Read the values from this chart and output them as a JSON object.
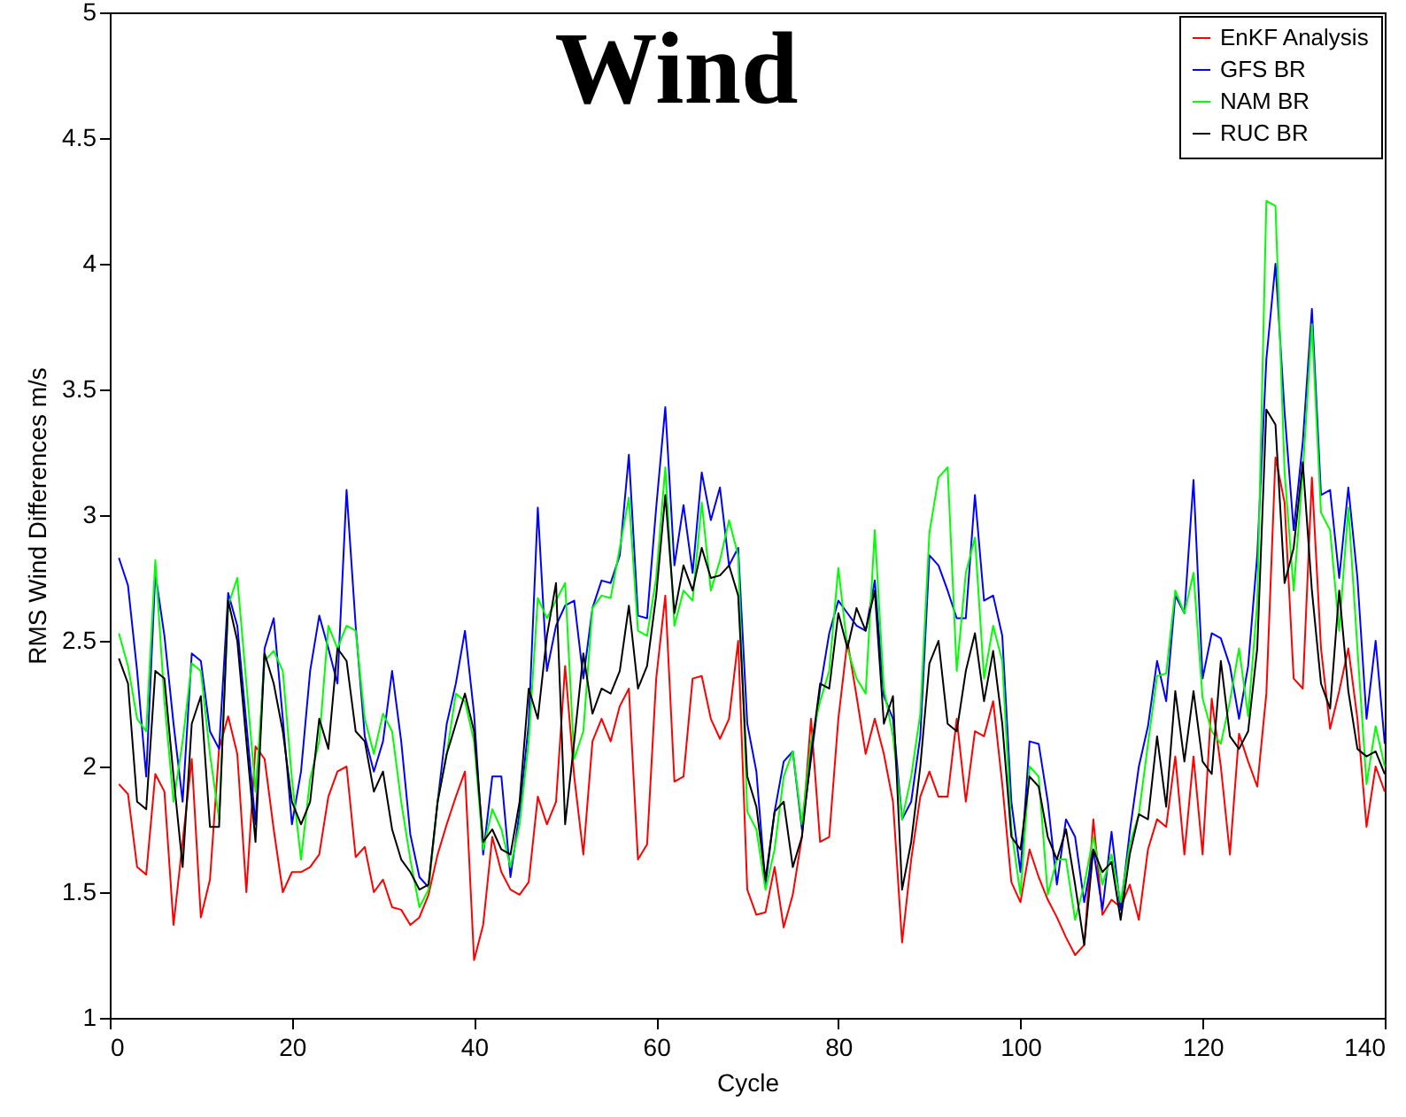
{
  "chart_data": {
    "type": "line",
    "title": "Wind",
    "xlabel": "Cycle",
    "ylabel": "RMS Wind Differences m/s",
    "x": [
      1,
      2,
      3,
      4,
      5,
      6,
      7,
      8,
      9,
      10,
      11,
      12,
      13,
      14,
      15,
      16,
      17,
      18,
      19,
      20,
      21,
      22,
      23,
      24,
      25,
      26,
      27,
      28,
      29,
      30,
      31,
      32,
      33,
      34,
      35,
      36,
      37,
      38,
      39,
      40,
      41,
      42,
      43,
      44,
      45,
      46,
      47,
      48,
      49,
      50,
      51,
      52,
      53,
      54,
      55,
      56,
      57,
      58,
      59,
      60,
      61,
      62,
      63,
      64,
      65,
      66,
      67,
      68,
      69,
      70,
      71,
      72,
      73,
      74,
      75,
      76,
      77,
      78,
      79,
      80,
      81,
      82,
      83,
      84,
      85,
      86,
      87,
      88,
      89,
      90,
      91,
      92,
      93,
      94,
      95,
      96,
      97,
      98,
      99,
      100,
      101,
      102,
      103,
      104,
      105,
      106,
      107,
      108,
      109,
      110,
      111,
      112,
      113,
      114,
      115,
      116,
      117,
      118,
      119,
      120,
      121,
      122,
      123,
      124,
      125,
      126,
      127,
      128,
      129,
      130,
      131,
      132,
      133,
      134,
      135,
      136,
      137,
      138,
      139,
      140
    ],
    "series": [
      {
        "name": "EnKF Analysis",
        "color": "#ff0000",
        "values": [
          1.93,
          1.89,
          1.6,
          1.57,
          1.97,
          1.9,
          1.37,
          1.7,
          2.03,
          1.4,
          1.55,
          2.07,
          2.2,
          2.05,
          1.5,
          2.08,
          2.03,
          1.75,
          1.5,
          1.58,
          1.58,
          1.6,
          1.65,
          1.88,
          1.98,
          2.0,
          1.64,
          1.68,
          1.5,
          1.55,
          1.44,
          1.43,
          1.37,
          1.4,
          1.49,
          1.65,
          1.77,
          1.88,
          1.98,
          1.23,
          1.37,
          1.72,
          1.58,
          1.51,
          1.49,
          1.54,
          1.88,
          1.77,
          1.86,
          2.4,
          1.96,
          1.65,
          2.1,
          2.19,
          2.1,
          2.24,
          2.31,
          1.63,
          1.69,
          2.35,
          2.68,
          1.94,
          1.96,
          2.35,
          2.36,
          2.19,
          2.11,
          2.19,
          2.5,
          1.51,
          1.41,
          1.42,
          1.6,
          1.36,
          1.49,
          1.72,
          2.19,
          1.7,
          1.72,
          2.19,
          2.5,
          2.28,
          2.05,
          2.19,
          2.05,
          1.86,
          1.3,
          1.63,
          1.88,
          1.98,
          1.88,
          1.88,
          2.19,
          1.86,
          2.14,
          2.12,
          2.26,
          1.93,
          1.54,
          1.46,
          1.67,
          1.56,
          1.47,
          1.4,
          1.32,
          1.25,
          1.29,
          1.79,
          1.41,
          1.47,
          1.44,
          1.53,
          1.39,
          1.67,
          1.79,
          1.76,
          2.04,
          1.65,
          2.04,
          1.65,
          2.27,
          2.0,
          1.65,
          2.13,
          2.02,
          1.92,
          2.29,
          3.23,
          3.05,
          2.35,
          2.31,
          3.15,
          2.47,
          2.15,
          2.3,
          2.47,
          2.19,
          1.76,
          2.0,
          1.9
        ]
      },
      {
        "name": "GFS BR",
        "color": "#0000ff",
        "values": [
          2.83,
          2.72,
          2.38,
          1.96,
          2.77,
          2.52,
          2.17,
          1.86,
          2.45,
          2.42,
          2.14,
          2.07,
          2.69,
          2.56,
          2.17,
          1.77,
          2.47,
          2.59,
          2.19,
          1.77,
          1.98,
          2.38,
          2.6,
          2.47,
          2.33,
          3.1,
          2.56,
          2.12,
          1.98,
          2.1,
          2.38,
          2.1,
          1.73,
          1.56,
          1.52,
          1.86,
          2.17,
          2.33,
          2.54,
          2.21,
          1.65,
          1.96,
          1.96,
          1.56,
          1.82,
          2.17,
          3.03,
          2.38,
          2.56,
          2.64,
          2.66,
          2.35,
          2.63,
          2.74,
          2.73,
          2.84,
          3.24,
          2.6,
          2.59,
          3.03,
          3.43,
          2.8,
          3.04,
          2.77,
          3.17,
          2.98,
          3.11,
          2.8,
          2.87,
          2.17,
          1.98,
          1.53,
          1.82,
          2.02,
          2.06,
          1.75,
          2.03,
          2.31,
          2.53,
          2.66,
          2.61,
          2.56,
          2.54,
          2.74,
          2.28,
          2.19,
          1.79,
          1.86,
          2.12,
          2.84,
          2.8,
          2.7,
          2.59,
          2.59,
          3.08,
          2.66,
          2.68,
          2.52,
          1.86,
          1.58,
          2.1,
          2.09,
          1.86,
          1.53,
          1.79,
          1.72,
          1.46,
          1.67,
          1.43,
          1.74,
          1.43,
          1.74,
          2.0,
          2.16,
          2.42,
          2.26,
          2.68,
          2.61,
          3.14,
          2.35,
          2.53,
          2.51,
          2.4,
          2.19,
          2.4,
          2.84,
          3.62,
          4.0,
          3.41,
          2.94,
          3.29,
          3.82,
          3.08,
          3.1,
          2.75,
          3.11,
          2.75,
          2.19,
          2.5,
          2.09
        ]
      },
      {
        "name": "NAM BR",
        "color": "#00ff00",
        "values": [
          2.53,
          2.4,
          2.19,
          2.14,
          2.82,
          2.26,
          1.86,
          2.1,
          2.41,
          2.38,
          2.05,
          1.79,
          2.64,
          2.75,
          2.33,
          1.9,
          2.42,
          2.46,
          2.38,
          1.95,
          1.63,
          1.95,
          2.1,
          2.56,
          2.47,
          2.56,
          2.54,
          2.19,
          2.05,
          2.21,
          2.14,
          1.86,
          1.63,
          1.44,
          1.51,
          1.86,
          2.05,
          2.29,
          2.26,
          2.1,
          1.67,
          1.83,
          1.75,
          1.6,
          1.77,
          2.1,
          2.67,
          2.59,
          2.66,
          2.73,
          2.03,
          2.14,
          2.63,
          2.68,
          2.67,
          2.87,
          3.07,
          2.54,
          2.52,
          2.75,
          3.19,
          2.56,
          2.7,
          2.66,
          3.05,
          2.7,
          2.82,
          2.98,
          2.84,
          1.82,
          1.75,
          1.51,
          1.67,
          1.96,
          2.06,
          1.77,
          2.1,
          2.26,
          2.38,
          2.79,
          2.47,
          2.35,
          2.29,
          2.94,
          2.31,
          2.12,
          1.79,
          1.96,
          2.21,
          2.93,
          3.15,
          3.19,
          2.38,
          2.77,
          2.91,
          2.35,
          2.56,
          2.42,
          1.75,
          1.49,
          2.0,
          1.96,
          1.49,
          1.63,
          1.63,
          1.39,
          1.53,
          1.72,
          1.53,
          1.65,
          1.46,
          1.69,
          1.81,
          2.09,
          2.36,
          2.37,
          2.7,
          2.61,
          2.77,
          2.27,
          2.14,
          2.09,
          2.26,
          2.47,
          2.2,
          2.65,
          4.25,
          4.23,
          3.17,
          2.7,
          3.17,
          3.76,
          3.01,
          2.94,
          2.54,
          3.03,
          2.47,
          1.93,
          2.16,
          2.0
        ]
      },
      {
        "name": "RUC BR",
        "color": "#000000",
        "values": [
          2.43,
          2.33,
          1.86,
          1.83,
          2.38,
          2.35,
          1.96,
          1.6,
          2.17,
          2.28,
          1.76,
          1.76,
          2.66,
          2.5,
          2.1,
          1.7,
          2.45,
          2.33,
          2.14,
          1.86,
          1.77,
          1.86,
          2.19,
          2.07,
          2.47,
          2.42,
          2.14,
          2.1,
          1.9,
          1.98,
          1.75,
          1.63,
          1.58,
          1.51,
          1.53,
          1.86,
          2.05,
          2.17,
          2.29,
          2.14,
          1.7,
          1.75,
          1.67,
          1.65,
          1.86,
          2.31,
          2.19,
          2.52,
          2.73,
          1.77,
          2.1,
          2.45,
          2.21,
          2.31,
          2.29,
          2.38,
          2.64,
          2.31,
          2.4,
          2.68,
          3.08,
          2.61,
          2.8,
          2.7,
          2.87,
          2.75,
          2.76,
          2.8,
          2.68,
          1.96,
          1.84,
          1.55,
          1.82,
          1.86,
          1.6,
          1.72,
          2.05,
          2.33,
          2.31,
          2.61,
          2.47,
          2.63,
          2.54,
          2.7,
          2.17,
          2.28,
          1.51,
          1.7,
          2.0,
          2.41,
          2.5,
          2.17,
          2.14,
          2.38,
          2.53,
          2.26,
          2.46,
          2.17,
          1.72,
          1.67,
          1.96,
          1.92,
          1.72,
          1.63,
          1.75,
          1.53,
          1.29,
          1.67,
          1.58,
          1.62,
          1.39,
          1.65,
          1.81,
          1.79,
          2.12,
          1.84,
          2.3,
          2.02,
          2.3,
          2.02,
          1.97,
          2.42,
          2.12,
          2.07,
          2.14,
          2.47,
          3.42,
          3.36,
          2.73,
          2.87,
          3.21,
          2.7,
          2.33,
          2.23,
          2.7,
          2.3,
          2.07,
          2.04,
          2.06,
          1.97
        ]
      }
    ],
    "xlim": [
      0,
      140
    ],
    "xticks": [
      0,
      20,
      40,
      60,
      80,
      100,
      120,
      140
    ],
    "ylim": [
      1,
      5
    ],
    "yticks": [
      1,
      1.5,
      2,
      2.5,
      3,
      3.5,
      4,
      4.5,
      5
    ],
    "grid": false,
    "legend": "top right",
    "line_style": "solid"
  }
}
